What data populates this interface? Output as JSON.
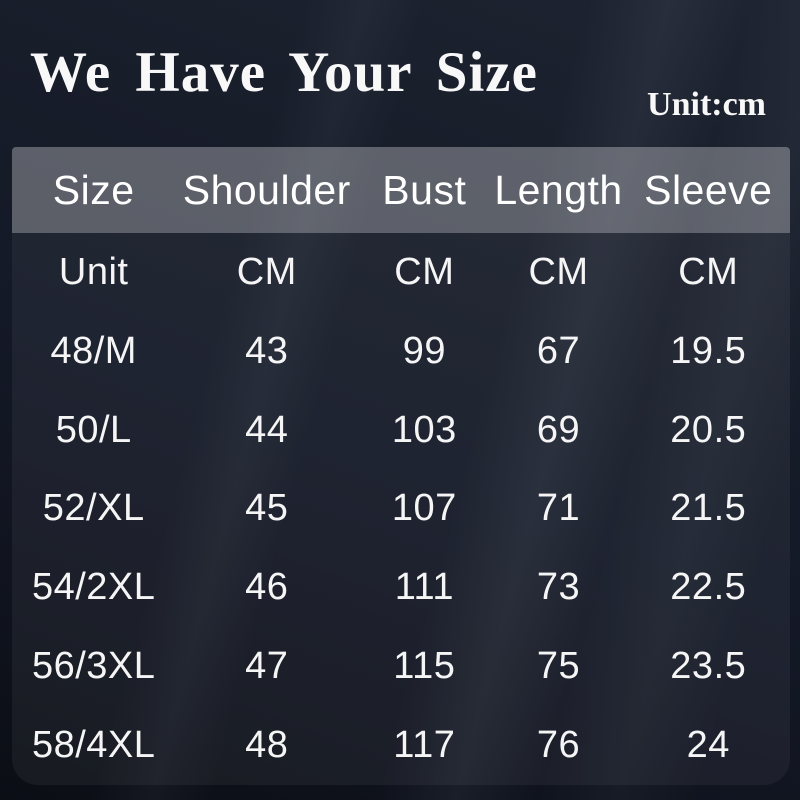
{
  "title": "We Have Your Size",
  "unit_note": "Unit:cm",
  "colors": {
    "background": "#141927",
    "background_bottom": "#0b0e15",
    "header_band": "#5d6470",
    "body_panel": "#1d2431",
    "text": "#f8f8f8"
  },
  "chart_data": {
    "type": "table",
    "title": "We Have Your Size",
    "unit": "cm",
    "columns": [
      "Size",
      "Shoulder",
      "Bust",
      "Length",
      "Sleeve"
    ],
    "rows": [
      [
        "Unit",
        "CM",
        "CM",
        "CM",
        "CM"
      ],
      [
        "48/M",
        "43",
        "99",
        "67",
        "19.5"
      ],
      [
        "50/L",
        "44",
        "103",
        "69",
        "20.5"
      ],
      [
        "52/XL",
        "45",
        "107",
        "71",
        "21.5"
      ],
      [
        "54/2XL",
        "46",
        "111",
        "73",
        "22.5"
      ],
      [
        "56/3XL",
        "47",
        "115",
        "75",
        "23.5"
      ],
      [
        "58/4XL",
        "48",
        "117",
        "76",
        "24"
      ]
    ]
  }
}
